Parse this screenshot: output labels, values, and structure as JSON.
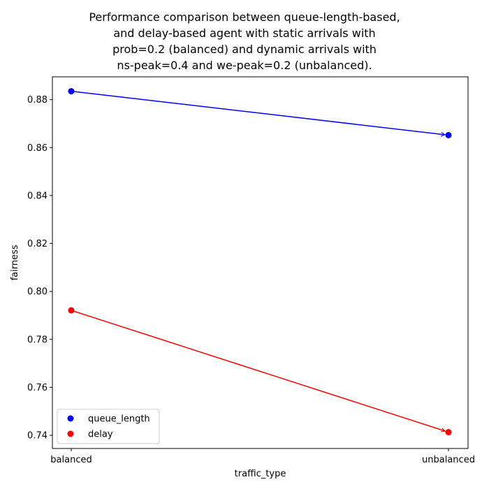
{
  "chart_data": {
    "type": "line",
    "title_lines": [
      "Performance comparison between queue-length-based,",
      "and delay-based agent with static arrivals with",
      "prob=0.2 (balanced) and dynamic arrivals with",
      "ns-peak=0.4 and we-peak=0.2 (unbalanced)."
    ],
    "xlabel": "traffic_type",
    "ylabel": "fairness",
    "categories": [
      "balanced",
      "unbalanced"
    ],
    "series": [
      {
        "name": "queue_length",
        "color": "#0000ff",
        "values": [
          0.8835,
          0.8652
        ]
      },
      {
        "name": "delay",
        "color": "#ff0000",
        "values": [
          0.7921,
          0.7413
        ]
      }
    ],
    "ylim": [
      0.7345,
      0.8895
    ],
    "yticks": [
      0.74,
      0.76,
      0.78,
      0.8,
      0.82,
      0.84,
      0.86,
      0.88
    ],
    "ytick_labels": [
      "0.74",
      "0.76",
      "0.78",
      "0.80",
      "0.82",
      "0.84",
      "0.86",
      "0.88"
    ],
    "grid": false,
    "legend_position": "lower-left"
  }
}
